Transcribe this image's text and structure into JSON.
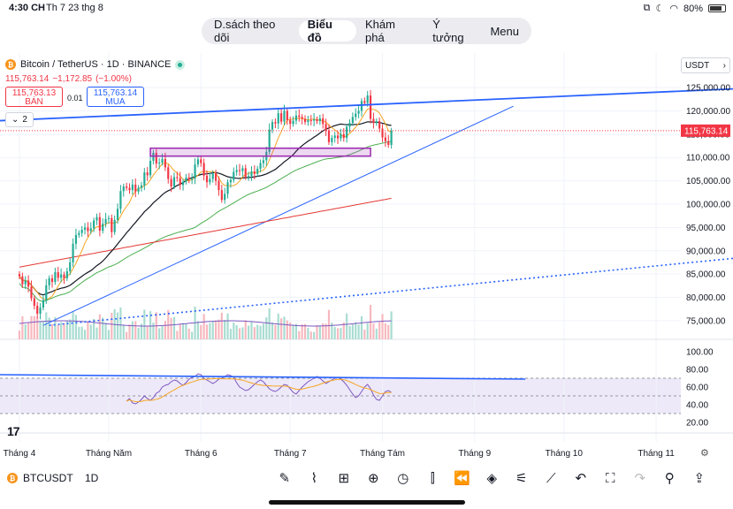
{
  "status": {
    "time": "4:30 CH",
    "date": "Th 7 23 thg 8",
    "battery": "80%"
  },
  "tabs": [
    {
      "label": "D.sách theo dõi",
      "active": false
    },
    {
      "label": "Biểu đồ",
      "active": true
    },
    {
      "label": "Khám phá",
      "active": false
    },
    {
      "label": "Ý tưởng",
      "active": false
    },
    {
      "label": "Menu",
      "active": false
    }
  ],
  "symbol": {
    "title": "Bitcoin / TetherUS · 1D · BINANCE",
    "icon": "bitcoin-icon"
  },
  "price": {
    "last": "115,763.14",
    "change": "−1,172.85",
    "change_pct": "(−1.00%)"
  },
  "quote": {
    "sell_price": "115,763.13",
    "sell_label": "BÁN",
    "spread": "0.01",
    "buy_price": "115,763.14",
    "buy_label": "MUA"
  },
  "indicators_count": "2",
  "currency": "USDT",
  "colors": {
    "up": "#22ab94",
    "down": "#f23645",
    "trend": "#2962ff",
    "box": "#9c27b0",
    "ma_fast": "#f5a623",
    "ma_mid": "#131722",
    "ma_green": "#4caf50",
    "ma_red": "#e53935",
    "rsi": "#7e57c2"
  },
  "chart_data": [
    {
      "type": "candlestick",
      "title": "Bitcoin / TetherUS · 1D · BINANCE",
      "y_ticks": [
        75000,
        80000,
        85000,
        90000,
        95000,
        100000,
        105000,
        110000,
        115000,
        120000,
        125000
      ],
      "y_tick_labels": [
        "75,000.00",
        "80,000.00",
        "85,000.00",
        "90,000.00",
        "95,000.00",
        "100,000.00",
        "105,000.00",
        "110,000.00",
        "115,000.00",
        "120,000.00",
        "125,000.00"
      ],
      "ylim": [
        71000,
        129000
      ],
      "x_tick_labels": [
        "Tháng 4",
        "Tháng Năm",
        "Tháng 6",
        "Tháng 7",
        "Tháng Tám",
        "Tháng 9",
        "Tháng 10",
        "Tháng 11"
      ],
      "x_tick_days": [
        0,
        30,
        61,
        91,
        122,
        153,
        183,
        214
      ],
      "last_price_label": "115,763.14",
      "last_price": 115763.14,
      "closes": [
        84500,
        82800,
        83600,
        82300,
        79800,
        78200,
        76500,
        77800,
        79400,
        82600,
        84100,
        83300,
        85400,
        84200,
        84900,
        84100,
        85600,
        87500,
        91500,
        93400,
        93800,
        94500,
        95000,
        94200,
        94800,
        96500,
        97200,
        94300,
        95800,
        96800,
        97000,
        94000,
        96600,
        99000,
        102800,
        103800,
        103500,
        103000,
        104200,
        102700,
        103500,
        104000,
        106800,
        106200,
        109300,
        111000,
        108700,
        108900,
        109700,
        107900,
        105400,
        103800,
        105800,
        105600,
        104100,
        104800,
        105700,
        105300,
        105500,
        108500,
        109600,
        108800,
        106100,
        104700,
        105400,
        106600,
        105000,
        103000,
        100900,
        102200,
        104700,
        105200,
        106900,
        107300,
        107100,
        107700,
        105800,
        106000,
        107000,
        106500,
        107600,
        108800,
        109400,
        111200,
        116000,
        117600,
        117300,
        119500,
        117700,
        120000,
        118000,
        117200,
        117900,
        119000,
        118700,
        118300,
        117600,
        118000,
        117900,
        118200,
        117800,
        118400,
        117200,
        115800,
        113300,
        114200,
        114700,
        114100,
        115000,
        114200,
        116600,
        117400,
        118700,
        119400,
        120000,
        122100,
        121700,
        123300,
        118300,
        117400,
        117800,
        116200,
        114300,
        113500,
        112700,
        115763.14
      ],
      "series": [
        {
          "name": "MA fast",
          "role": "ma_fast"
        },
        {
          "name": "MA mid",
          "role": "ma_mid"
        },
        {
          "name": "MA green",
          "role": "ma_green"
        },
        {
          "name": "MA red",
          "role": "ma_red"
        }
      ],
      "resistance_box": {
        "from_day": 114,
        "to_day": 188,
        "low": 110300,
        "high": 112000
      },
      "trendlines": [
        {
          "name": "upper",
          "from": [
            -10,
            117800
          ],
          "to": [
            250,
            125000
          ]
        },
        {
          "name": "rising",
          "from": [
            8,
            74000
          ],
          "to": [
            166,
            121000
          ]
        },
        {
          "name": "dotted",
          "from": [
            10,
            74000
          ],
          "to": [
            250,
            89000
          ],
          "dotted": true
        }
      ]
    },
    {
      "type": "line",
      "title": "RSI",
      "y_ticks": [
        20,
        40,
        60,
        80,
        100
      ],
      "y_tick_labels": [
        "20.00",
        "40.00",
        "60.00",
        "80.00",
        "100.00"
      ],
      "ylim": [
        14,
        104
      ],
      "band": [
        30,
        70
      ],
      "values": [
        44,
        47,
        42,
        41,
        43,
        46,
        50,
        47,
        45,
        48,
        53,
        55,
        60,
        62,
        63,
        66,
        68,
        67,
        64,
        62,
        65,
        69,
        71,
        72,
        75,
        74,
        70,
        68,
        66,
        64,
        66,
        69,
        70,
        72,
        74,
        73,
        71,
        65,
        60,
        58,
        56,
        57,
        60,
        63,
        66,
        68,
        66,
        62,
        58,
        56,
        55,
        57,
        60,
        63,
        62,
        58,
        54,
        52,
        56,
        60,
        63,
        66,
        68,
        70,
        72,
        70,
        67,
        64,
        66,
        68,
        70,
        71,
        69,
        66,
        62,
        57,
        52,
        48,
        50,
        55,
        60,
        63,
        58,
        51,
        46,
        45,
        50,
        55,
        56,
        54
      ]
    }
  ]
}
